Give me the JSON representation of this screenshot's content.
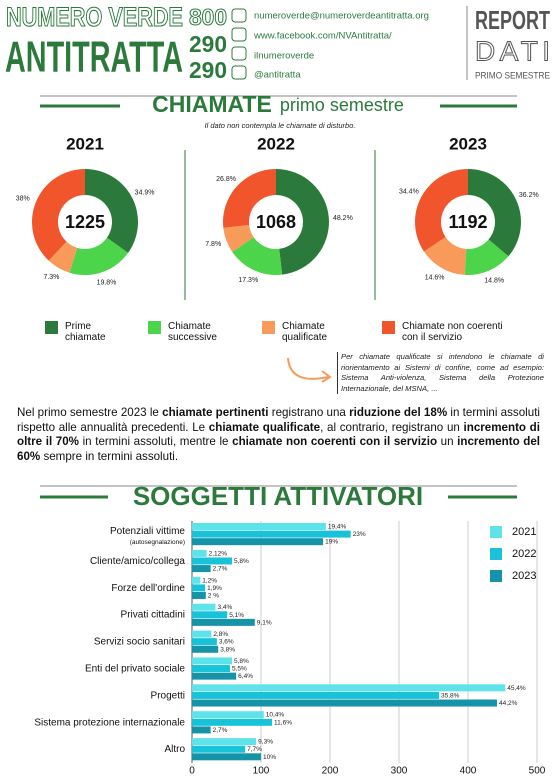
{
  "header": {
    "line1": "NUMERO VERDE",
    "line2": "ANTITRATTA",
    "number": [
      "800",
      "290",
      "290"
    ],
    "contacts": [
      "numeroverde@numeroverdeantitratta.org",
      "www.facebook.com/NVAntitratta/",
      "ilnumeroverde",
      "@antitratta"
    ],
    "report": "REPORT",
    "dati": "DATI",
    "period": "PRIMO SEMESTRE"
  },
  "section1": {
    "title": "CHIAMATE",
    "subtitle": "primo semestre",
    "note": "Il dato non contempla le chiamate di disturbo."
  },
  "pie_legend": {
    "labels": [
      "Prime chiamate",
      "Chiamate successive",
      "Chiamate qualificate",
      "Chiamate non coerenti con il servizio"
    ],
    "colors": [
      "#2b7a3b",
      "#4cd44a",
      "#f79a5a",
      "#f0552b"
    ]
  },
  "qualified_note": "Per chiamate qualificate si intendono le chiamate di riorientamento ai Sistemi di confine, come ad esempio: Sistema Anti-violenza, Sistema della Protezione Internazionale, del MSNA, ...",
  "paragraph": [
    {
      "text": "Nel primo semestre 2023 le ",
      "bold": false
    },
    {
      "text": "chiamate pertinenti",
      "bold": true
    },
    {
      "text": " registrano una ",
      "bold": false
    },
    {
      "text": "riduzione del 18%",
      "bold": true
    },
    {
      "text": " in termini assoluti rispetto alle annualità precedenti. Le ",
      "bold": false
    },
    {
      "text": "chiamate qualificate",
      "bold": true
    },
    {
      "text": ", al contrario, registrano un ",
      "bold": false
    },
    {
      "text": "incremento di oltre il 70%",
      "bold": true
    },
    {
      "text": " in termini assoluti, mentre le ",
      "bold": false
    },
    {
      "text": "chiamate non coerenti con il servizio",
      "bold": true
    },
    {
      "text": " un ",
      "bold": false
    },
    {
      "text": "incremento del 60%",
      "bold": true
    },
    {
      "text": " sempre in termini assoluti.",
      "bold": false
    }
  ],
  "chart_data": [
    {
      "type": "pie",
      "title": "2021",
      "total": 1225,
      "values": [
        34.9,
        19.8,
        7.3,
        38
      ],
      "value_labels": [
        "34.9%",
        "19.8%",
        "7.3%",
        "38%"
      ]
    },
    {
      "type": "pie",
      "title": "2022",
      "total": 1068,
      "values": [
        48.2,
        17.3,
        7.8,
        26.8
      ],
      "value_labels": [
        "48.2%",
        "17.3%",
        "7.8%",
        "26.8%"
      ]
    },
    {
      "type": "pie",
      "title": "2023",
      "total": 1192,
      "values": [
        36.2,
        14.8,
        14.6,
        34.4
      ],
      "value_labels": [
        "36.2%",
        "14.8%",
        "14.6%",
        "34.4%"
      ]
    },
    {
      "type": "hbar",
      "title": "SOGGETTI ATTIVATORI",
      "categories": [
        "Potenziali vittime",
        "Cliente/amico/collega",
        "Forze dell'ordine",
        "Privati cittadini",
        "Servizi socio sanitari",
        "Enti del privato sociale",
        "Progetti",
        "Sistema protezione internazionale",
        "Altro"
      ],
      "category_note": "(autosegnalazione)",
      "series": [
        {
          "name": "2021",
          "color": "#5fe3ea",
          "values": [
            194,
            21.2,
            12,
            34,
            28,
            58,
            454,
            104,
            93
          ],
          "value_labels": [
            "19,4%",
            "2,12%",
            "1,2%",
            "3,4%",
            "2,8%",
            "5,8%",
            "45,4%",
            "10,4%",
            "9,3%"
          ]
        },
        {
          "name": "2022",
          "color": "#18c3da",
          "values": [
            230,
            58,
            19,
            51,
            36,
            55,
            358,
            116,
            77
          ],
          "value_labels": [
            "23%",
            "5,8%",
            "1,9%",
            "5,1%",
            "3,6%",
            "5,5%",
            "35,8%",
            "11,6%",
            "7,7%"
          ]
        },
        {
          "name": "2023",
          "color": "#1593a7",
          "values": [
            190,
            27,
            20,
            91,
            38,
            64,
            442,
            27,
            100
          ],
          "value_labels": [
            "19%",
            "2,7%",
            "2 %",
            "9,1%",
            "3,8%",
            "6,4%",
            "44,2%",
            "2,7%",
            "10%"
          ]
        }
      ],
      "xlim": [
        0,
        500
      ],
      "xticks": [
        0,
        100,
        200,
        300,
        400,
        500
      ],
      "grid": true
    }
  ]
}
